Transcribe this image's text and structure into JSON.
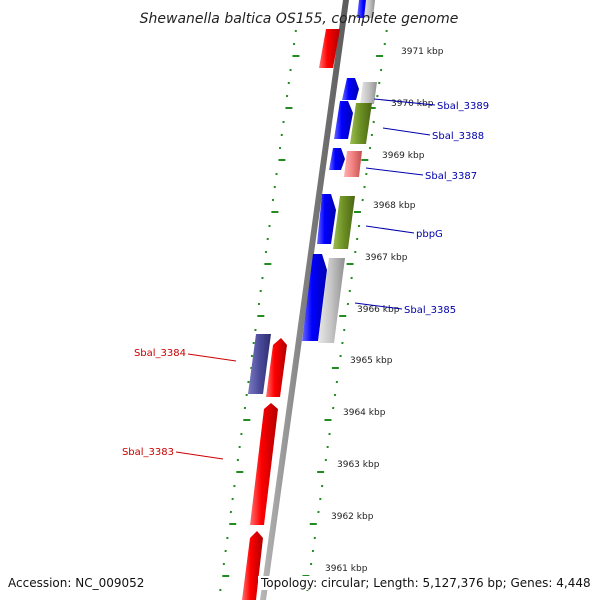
{
  "title": "Shewanella baltica OS155, complete genome",
  "footer": {
    "accession": "Accession: NC_009052",
    "topology": "Topology: circular; Length: 5,127,376 bp; Genes: 4,448"
  },
  "kbp_labels": [
    "3971 kbp",
    "3970 kbp",
    "3969 kbp",
    "3968 kbp",
    "3967 kbp",
    "3966 kbp",
    "3965 kbp",
    "3964 kbp",
    "3963 kbp",
    "3962 kbp",
    "3961 kbp"
  ],
  "genes": [
    {
      "label": "Sbal_3389",
      "color": "#0000aa"
    },
    {
      "label": "Sbal_3388",
      "color": "#0000aa"
    },
    {
      "label": "Sbal_3387",
      "color": "#0000aa"
    },
    {
      "label": "pbpG",
      "color": "#0000aa"
    },
    {
      "label": "Sbal_3385",
      "color": "#0000aa"
    },
    {
      "label": "Sbal_3384",
      "color": "#cc0000"
    },
    {
      "label": "Sbal_3383",
      "color": "#cc0000"
    }
  ],
  "colors": {
    "forward_strand": "#0000ff",
    "reverse_strand": "#ff0000",
    "grey_feature": "#c0c0c0",
    "green_feature": "#6b8e23",
    "pink_feature": "#f08080",
    "purple_feature": "#4b4b9b",
    "backbone": "#808080",
    "tick_marks": "#228b22"
  }
}
